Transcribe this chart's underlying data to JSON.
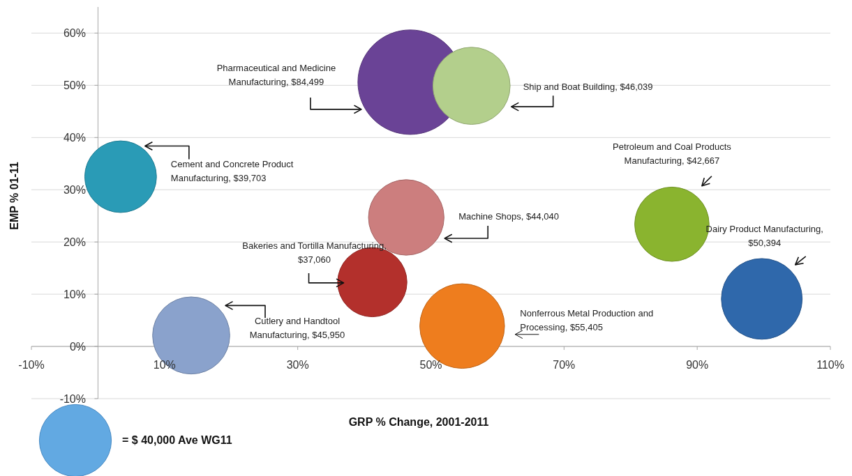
{
  "chart_data": {
    "type": "bubble",
    "xlabel": "GRP % Change, 2001-2011",
    "ylabel": "EMP % 01-11",
    "xlim": [
      -10,
      110
    ],
    "xticks": [
      {
        "value": -10,
        "label": "-10%"
      },
      {
        "value": 10,
        "label": "10%"
      },
      {
        "value": 30,
        "label": "30%"
      },
      {
        "value": 50,
        "label": "50%"
      },
      {
        "value": 70,
        "label": "70%"
      },
      {
        "value": 90,
        "label": "90%"
      },
      {
        "value": 110,
        "label": "110%"
      }
    ],
    "ylim": [
      -10,
      65
    ],
    "yticks": [
      {
        "value": -10,
        "label": "-10%"
      },
      {
        "value": 0,
        "label": "0%"
      },
      {
        "value": 10,
        "label": "10%"
      },
      {
        "value": 20,
        "label": "20%"
      },
      {
        "value": 30,
        "label": "30%"
      },
      {
        "value": 40,
        "label": "40%"
      },
      {
        "value": 50,
        "label": "50%"
      },
      {
        "value": 60,
        "label": "60%"
      }
    ],
    "grid": "y",
    "x": [
      46.9,
      56.1,
      3.4,
      46.3,
      41.2,
      14.0,
      54.7,
      86.2,
      99.7
    ],
    "values": [
      50.6,
      49.9,
      32.5,
      24.7,
      12.3,
      2.1,
      3.9,
      23.4,
      9.1
    ],
    "sizes": [
      84499,
      46039,
      39703,
      44040,
      37060,
      45950,
      55405,
      42667,
      50394
    ],
    "colors": [
      "#6a4396",
      "#b3cf8c",
      "#2a9bb6",
      "#cc7e7e",
      "#b3302c",
      "#8aa2cc",
      "#ee7d1e",
      "#8ab42f",
      "#2f68ab"
    ],
    "size_legend": [
      {
        "value": 40000,
        "label": "= $ 40,000 Ave WG11"
      }
    ],
    "annotations": [
      "Pharmaceutical and Medicine Manufacturing, $84,499",
      "Ship and Boat Building, $46,039",
      "Cement and Concrete Product Manufacturing, $39,703",
      "Machine Shops, $44,040",
      "Bakeries and Tortilla Manufacturing, $37,060",
      "Cutlery and Handtool Manufacturing, $45,950",
      "Nonferrous Metal Production and Processing, $55,405",
      "Petroleum and Coal Products Manufacturing, $42,667",
      "Dairy Product Manufacturing, $50,394"
    ]
  }
}
